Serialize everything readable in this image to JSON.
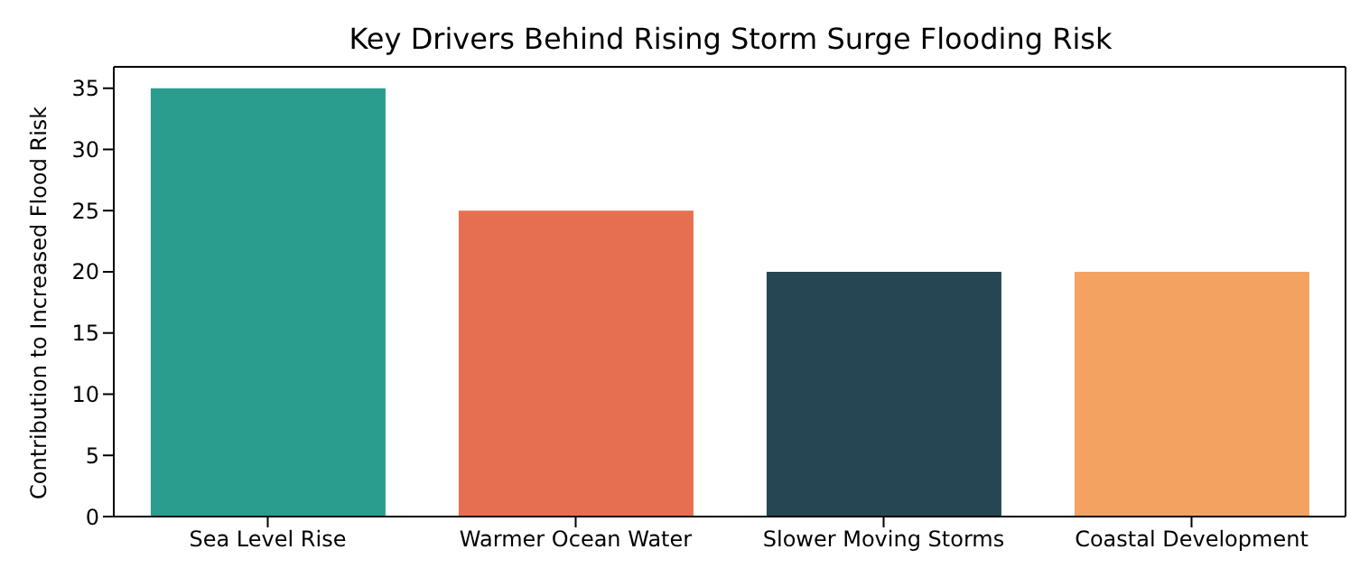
{
  "chart_data": {
    "type": "bar",
    "title": "Key Drivers Behind Rising Storm Surge Flooding Risk",
    "ylabel": "Contribution to Increased Flood Risk",
    "categories": [
      "Sea Level Rise",
      "Warmer Ocean Water",
      "Slower Moving Storms",
      "Coastal Development"
    ],
    "values": [
      35,
      25,
      20,
      20
    ],
    "colors": [
      "#2a9d8f",
      "#e76f51",
      "#264653",
      "#f4a261"
    ],
    "ylim": [
      0,
      36.75
    ],
    "yticks": [
      0,
      5,
      10,
      15,
      20,
      25,
      30,
      35
    ],
    "grid": false
  }
}
